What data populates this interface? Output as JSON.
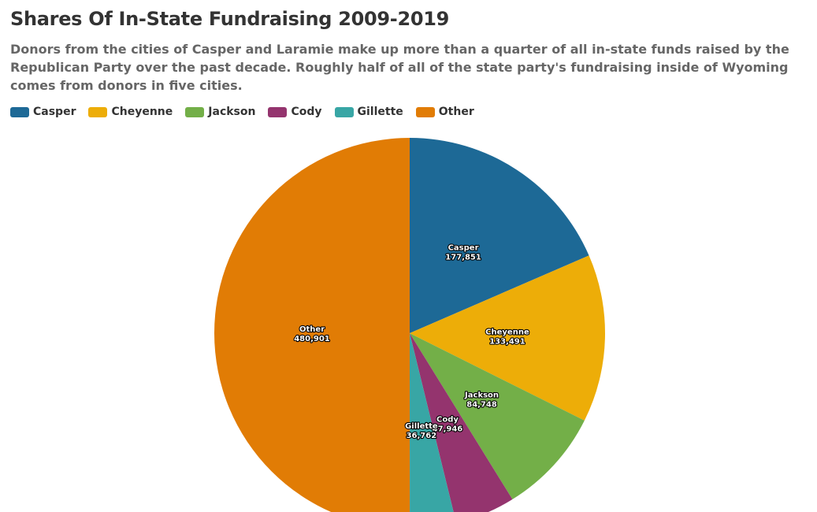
{
  "chart_data": {
    "type": "pie",
    "title": "Shares Of In-State Fundraising 2009-2019",
    "subtitle": "Donors from the cities of Casper and Laramie make up more than a quarter of all in-state funds raised by the Republican Party over the past decade. Roughly half of all of the state party's fundraising inside of Wyoming comes from donors in five cities.",
    "legend_position": "top-left",
    "slices": [
      {
        "name": "Casper",
        "value": 177851,
        "label": "177,851",
        "color": "#1d6996"
      },
      {
        "name": "Cheyenne",
        "value": 133491,
        "label": "133,491",
        "color": "#edad08"
      },
      {
        "name": "Jackson",
        "value": 84748,
        "label": "84,748",
        "color": "#73af48"
      },
      {
        "name": "Cody",
        "value": 47946,
        "label": "47,946",
        "color": "#94346e"
      },
      {
        "name": "Gillette",
        "value": 36762,
        "label": "36,762",
        "color": "#38a6a5"
      },
      {
        "name": "Other",
        "value": 480901,
        "label": "480,901",
        "color": "#e17c05"
      }
    ]
  }
}
